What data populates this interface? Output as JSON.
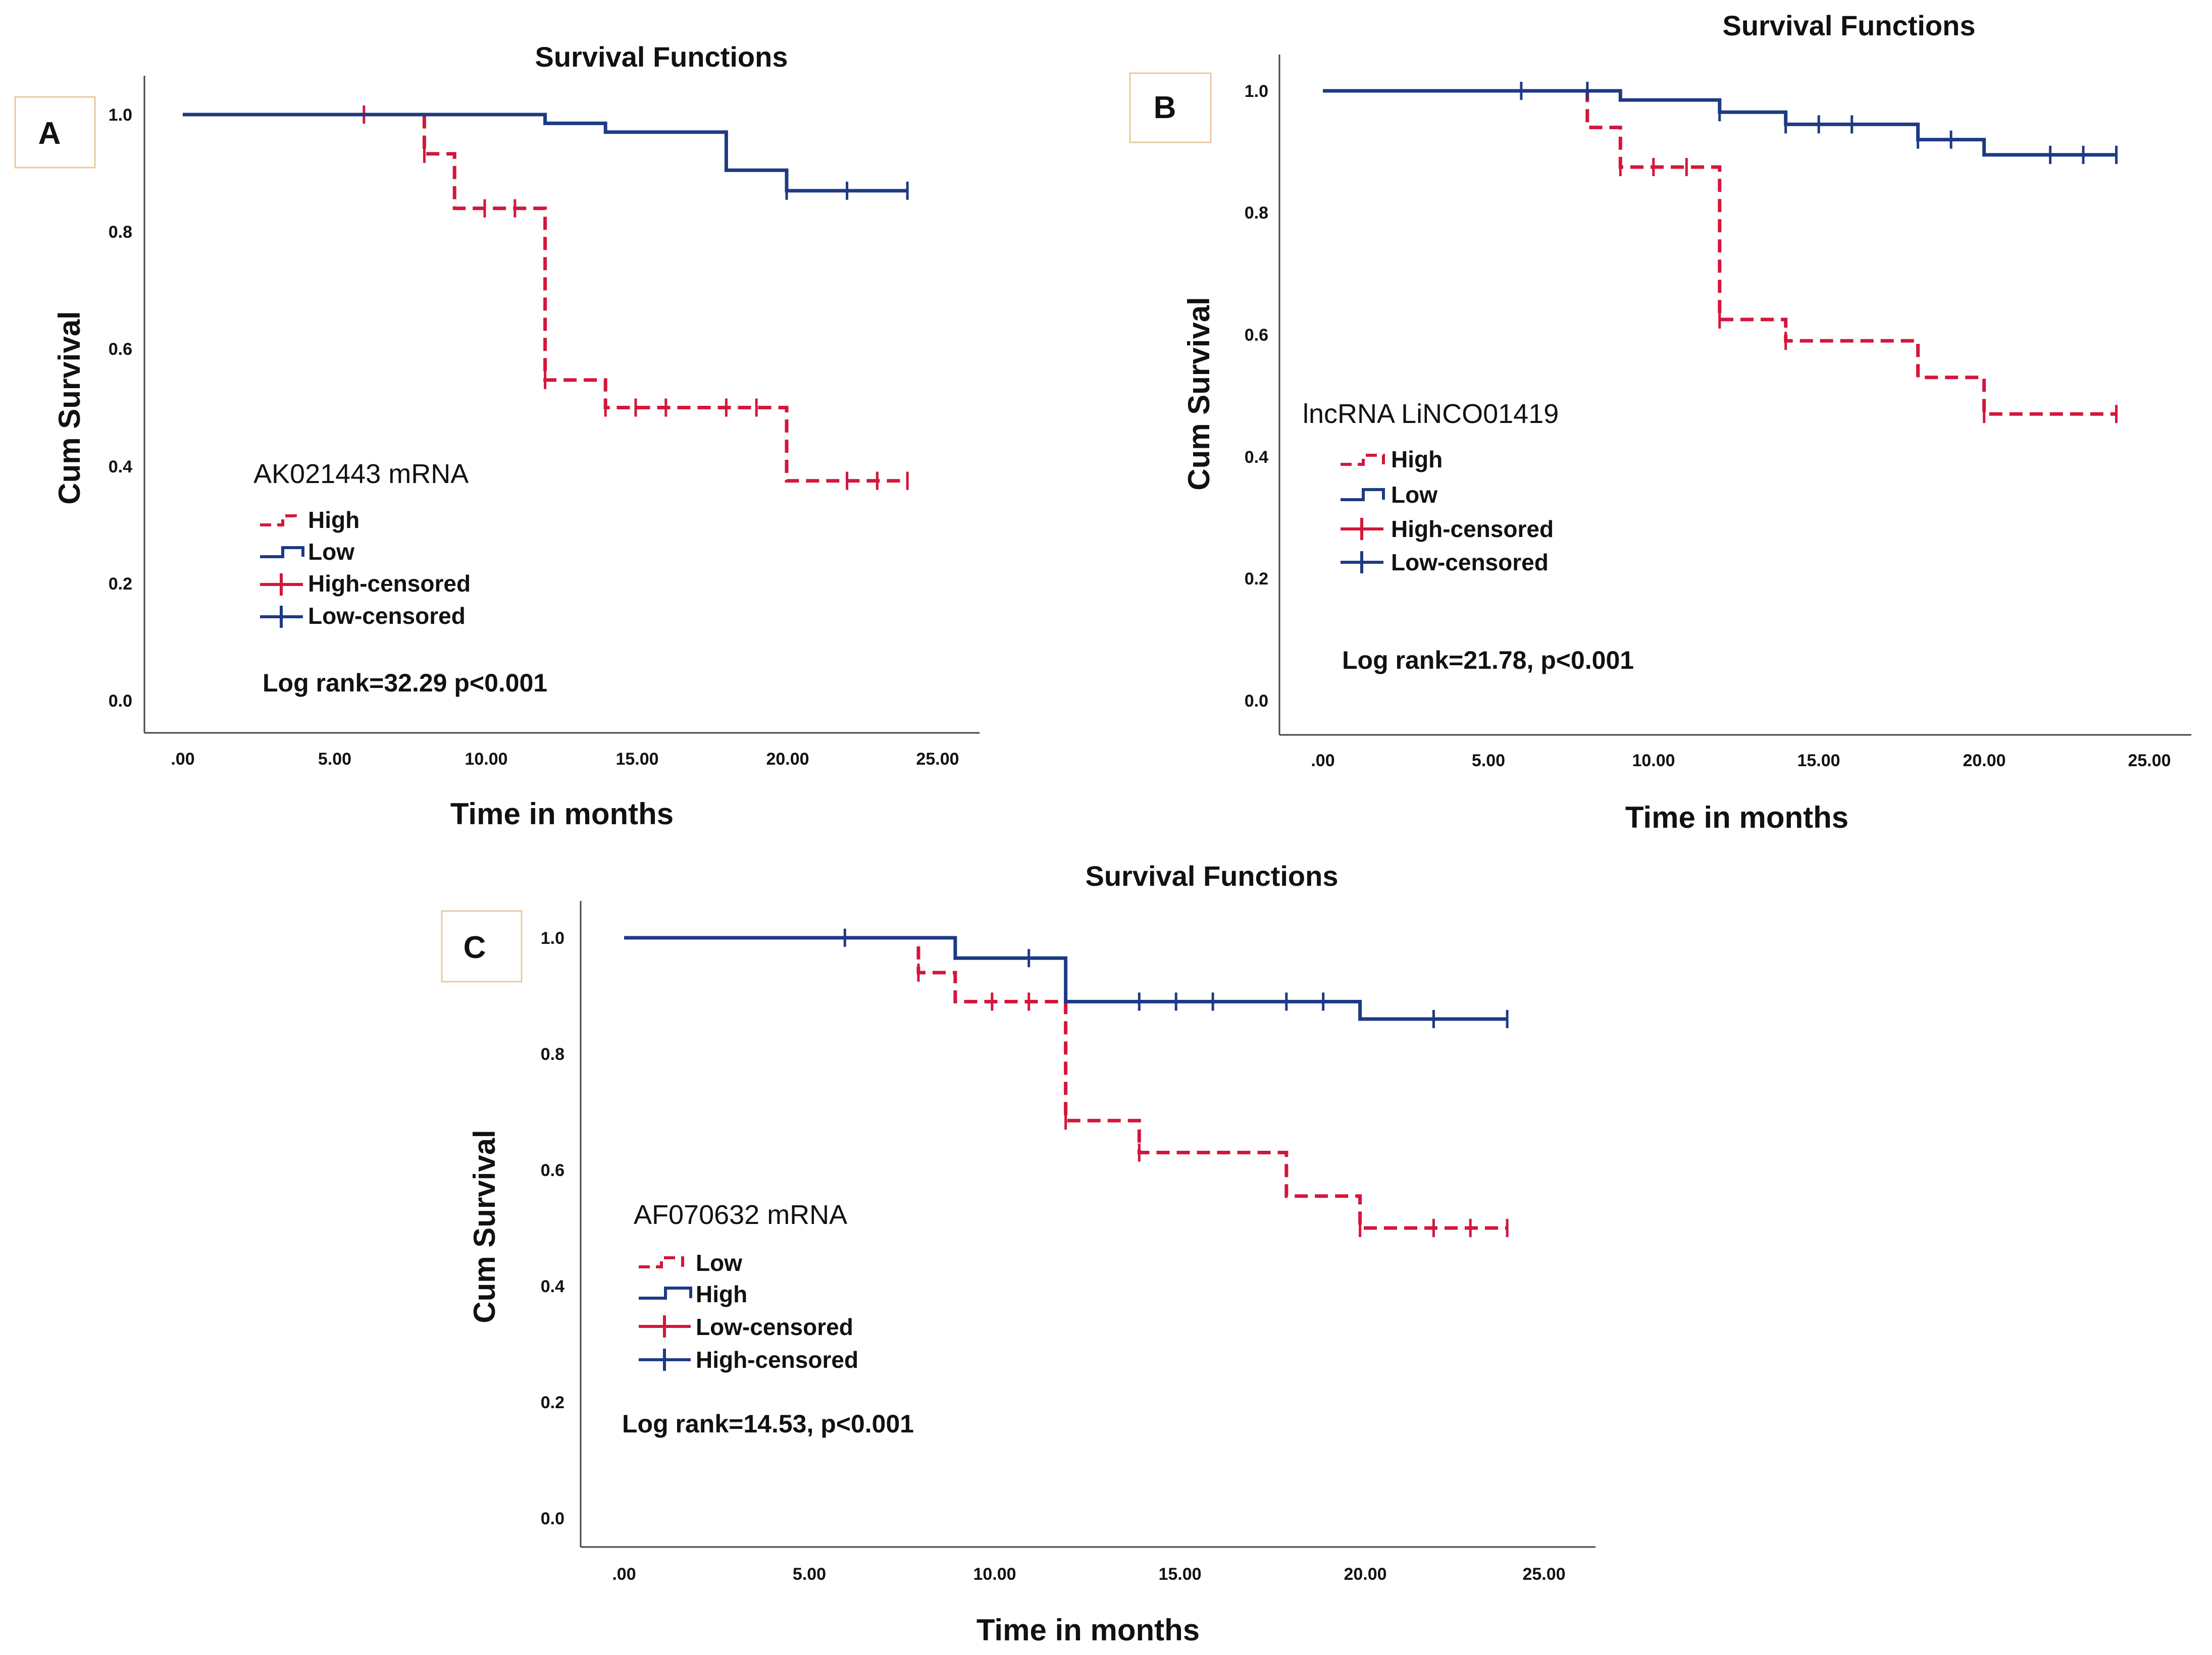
{
  "colors": {
    "high_red": "#d4163c",
    "low_blue": "#1e3a84",
    "axis": "#444444",
    "badge_border": "#e8c9a0"
  },
  "chart_data": [
    {
      "type": "line",
      "panel": "A",
      "title": "Survival Functions",
      "xlabel": "Time in months",
      "ylabel": "Cum Survival",
      "xlim": [
        0,
        25
      ],
      "ylim": [
        0,
        1
      ],
      "x_ticks": [
        ".00",
        "5.00",
        "10.00",
        "15.00",
        "20.00",
        "25.00"
      ],
      "y_ticks": [
        "0.0",
        "0.2",
        "0.4",
        "0.6",
        "0.8",
        "1.0"
      ],
      "grid": false,
      "note": "AK021443 mRNA",
      "stat": "Log rank=32.29 p<0.001",
      "legend": [
        "High",
        "Low",
        "High-censored",
        "Low-censored"
      ],
      "series": [
        {
          "name": "High",
          "color": "#d4163c",
          "dashed": true,
          "steps": [
            [
              0,
              1.0
            ],
            [
              8,
              0.933
            ],
            [
              9,
              0.84
            ],
            [
              12,
              0.547
            ],
            [
              14,
              0.5
            ],
            [
              20,
              0.375
            ],
            [
              24,
              0.375
            ]
          ],
          "censored": [
            [
              6,
              1.0
            ],
            [
              8,
              0.933
            ],
            [
              10,
              0.84
            ],
            [
              11,
              0.84
            ],
            [
              12,
              0.547
            ],
            [
              14,
              0.5
            ],
            [
              15,
              0.5
            ],
            [
              16,
              0.5
            ],
            [
              18,
              0.5
            ],
            [
              19,
              0.5
            ],
            [
              22,
              0.375
            ],
            [
              23,
              0.375
            ],
            [
              24,
              0.375
            ]
          ]
        },
        {
          "name": "Low",
          "color": "#1e3a84",
          "dashed": false,
          "steps": [
            [
              0,
              1.0
            ],
            [
              12,
              0.985
            ],
            [
              14,
              0.97
            ],
            [
              18,
              0.905
            ],
            [
              20,
              0.87
            ],
            [
              24,
              0.87
            ]
          ],
          "censored": [
            [
              20,
              0.87
            ],
            [
              22,
              0.87
            ],
            [
              24,
              0.87
            ]
          ]
        }
      ]
    },
    {
      "type": "line",
      "panel": "B",
      "title": "Survival Functions",
      "xlabel": "Time in months",
      "ylabel": "Cum Survival",
      "xlim": [
        0,
        25
      ],
      "ylim": [
        0,
        1
      ],
      "x_ticks": [
        ".00",
        "5.00",
        "10.00",
        "15.00",
        "20.00",
        "25.00"
      ],
      "y_ticks": [
        "0.0",
        "0.2",
        "0.4",
        "0.6",
        "0.8",
        "1.0"
      ],
      "grid": false,
      "note": "lncRNA LiNCO01419",
      "stat": "Log rank=21.78, p<0.001",
      "legend": [
        "High",
        "Low",
        "High-censored",
        "Low-censored"
      ],
      "series": [
        {
          "name": "High",
          "color": "#d4163c",
          "dashed": true,
          "steps": [
            [
              0,
              1.0
            ],
            [
              8,
              0.94
            ],
            [
              9,
              0.875
            ],
            [
              12,
              0.625
            ],
            [
              14,
              0.59
            ],
            [
              18,
              0.53
            ],
            [
              20,
              0.47
            ],
            [
              24,
              0.47
            ]
          ],
          "censored": [
            [
              9,
              0.875
            ],
            [
              10,
              0.875
            ],
            [
              11,
              0.875
            ],
            [
              12,
              0.625
            ],
            [
              14,
              0.59
            ],
            [
              20,
              0.47
            ],
            [
              24,
              0.47
            ]
          ]
        },
        {
          "name": "Low",
          "color": "#1e3a84",
          "dashed": false,
          "steps": [
            [
              0,
              1.0
            ],
            [
              9,
              0.985
            ],
            [
              12,
              0.965
            ],
            [
              14,
              0.945
            ],
            [
              18,
              0.92
            ],
            [
              20,
              0.895
            ],
            [
              24,
              0.895
            ]
          ],
          "censored": [
            [
              6,
              1.0
            ],
            [
              8,
              1.0
            ],
            [
              12,
              0.965
            ],
            [
              14,
              0.945
            ],
            [
              15,
              0.945
            ],
            [
              16,
              0.945
            ],
            [
              18,
              0.92
            ],
            [
              19,
              0.92
            ],
            [
              22,
              0.895
            ],
            [
              23,
              0.895
            ],
            [
              24,
              0.895
            ]
          ]
        }
      ]
    },
    {
      "type": "line",
      "panel": "C",
      "title": "Survival Functions",
      "xlabel": "Time in months",
      "ylabel": "Cum Survival",
      "xlim": [
        0,
        25
      ],
      "ylim": [
        0,
        1
      ],
      "x_ticks": [
        ".00",
        "5.00",
        "10.00",
        "15.00",
        "20.00",
        "25.00"
      ],
      "y_ticks": [
        "0.0",
        "0.2",
        "0.4",
        "0.6",
        "0.8",
        "1.0"
      ],
      "grid": false,
      "note": "AF070632 mRNA",
      "stat": "Log rank=14.53, p<0.001",
      "legend": [
        "Low",
        "High",
        "Low-censored",
        "High-censored"
      ],
      "series": [
        {
          "name": "Low",
          "color": "#d4163c",
          "dashed": true,
          "steps": [
            [
              0,
              1.0
            ],
            [
              8,
              0.94
            ],
            [
              9,
              0.89
            ],
            [
              12,
              0.685
            ],
            [
              14,
              0.63
            ],
            [
              18,
              0.555
            ],
            [
              20,
              0.5
            ],
            [
              24,
              0.5
            ]
          ],
          "censored": [
            [
              8,
              0.94
            ],
            [
              10,
              0.89
            ],
            [
              11,
              0.89
            ],
            [
              12,
              0.685
            ],
            [
              14,
              0.63
            ],
            [
              20,
              0.5
            ],
            [
              22,
              0.5
            ],
            [
              23,
              0.5
            ],
            [
              24,
              0.5
            ]
          ]
        },
        {
          "name": "High",
          "color": "#1e3a84",
          "dashed": false,
          "steps": [
            [
              0,
              1.0
            ],
            [
              9,
              0.965
            ],
            [
              12,
              0.89
            ],
            [
              20,
              0.86
            ],
            [
              24,
              0.86
            ]
          ],
          "censored": [
            [
              6,
              1.0
            ],
            [
              11,
              0.965
            ],
            [
              14,
              0.89
            ],
            [
              15,
              0.89
            ],
            [
              16,
              0.89
            ],
            [
              18,
              0.89
            ],
            [
              19,
              0.89
            ],
            [
              22,
              0.86
            ],
            [
              24,
              0.86
            ]
          ]
        }
      ]
    }
  ]
}
